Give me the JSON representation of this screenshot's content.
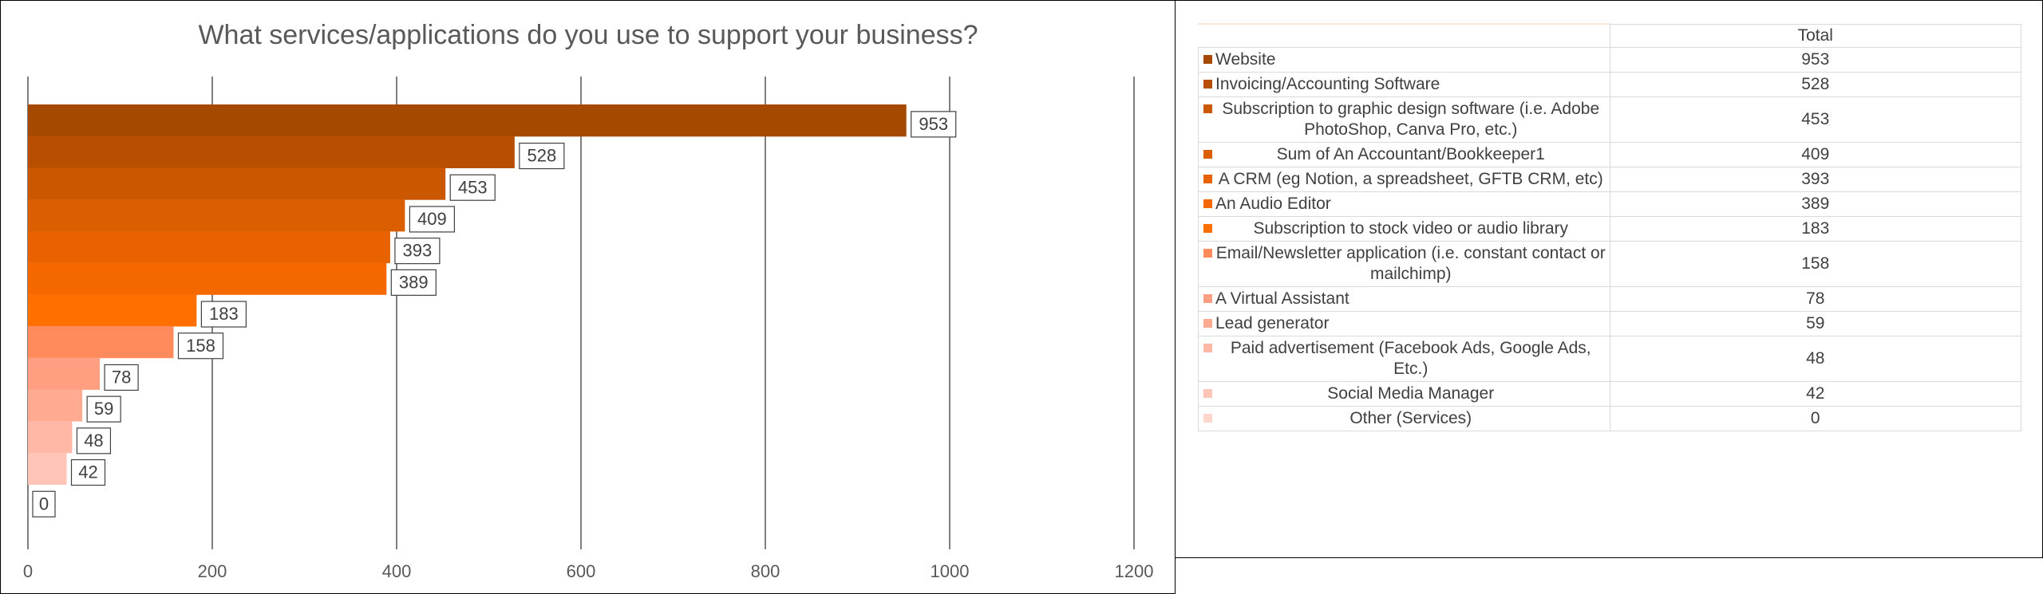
{
  "chart_data": {
    "type": "bar",
    "orientation": "horizontal",
    "title": "What services/applications do you use to support your business?",
    "categories": [
      "Website",
      "Invoicing/Accounting Software",
      "Subscription to graphic design software (i.e. Adobe PhotoShop, Canva Pro, etc.)",
      "Sum of An Accountant/Bookkeeper1",
      "A CRM (eg Notion, a spreadsheet, GFTB CRM, etc)",
      "An Audio Editor",
      "Subscription to stock video or audio library",
      "Email/Newsletter application (i.e. constant contact or mailchimp)",
      "A Virtual Assistant",
      "Lead generator",
      "Paid advertisement (Facebook Ads, Google Ads, Etc.)",
      "Social Media Manager",
      "Other (Services)"
    ],
    "values": [
      953,
      528,
      453,
      409,
      393,
      389,
      183,
      158,
      78,
      59,
      48,
      42,
      0
    ],
    "xlim": [
      0,
      1200
    ],
    "xticks": [
      0,
      200,
      400,
      600,
      800,
      1000,
      1200
    ],
    "grid": "vertical",
    "data_labels": true,
    "colors": [
      "#A54800",
      "#B84F00",
      "#CB5700",
      "#DB5E00",
      "#E86300",
      "#F56800",
      "#FF6F00",
      "#FF8A5C",
      "#FF9E80",
      "#FFAA91",
      "#FFB8A6",
      "#FFC6B8",
      "#FFD6CC"
    ]
  },
  "table": {
    "header": "Total",
    "rows": [
      {
        "label": "Website",
        "value": "953"
      },
      {
        "label": "Invoicing/Accounting Software",
        "value": "528"
      },
      {
        "label": "Subscription to graphic design software (i.e. Adobe PhotoShop, Canva Pro, etc.)",
        "value": "453"
      },
      {
        "label": "Sum of An Accountant/Bookkeeper1",
        "value": "409"
      },
      {
        "label": "A CRM (eg Notion, a spreadsheet, GFTB CRM, etc)",
        "value": "393"
      },
      {
        "label": "An Audio Editor",
        "value": "389"
      },
      {
        "label": "Subscription to stock video or audio library",
        "value": "183"
      },
      {
        "label": "Email/Newsletter application (i.e. constant contact or mailchimp)",
        "value": "158"
      },
      {
        "label": "A Virtual Assistant",
        "value": "78"
      },
      {
        "label": "Lead generator",
        "value": "59"
      },
      {
        "label": "Paid advertisement (Facebook Ads, Google Ads, Etc.)",
        "value": "48"
      },
      {
        "label": "Social Media Manager",
        "value": "42"
      },
      {
        "label": "Other (Services)",
        "value": "0"
      }
    ]
  }
}
